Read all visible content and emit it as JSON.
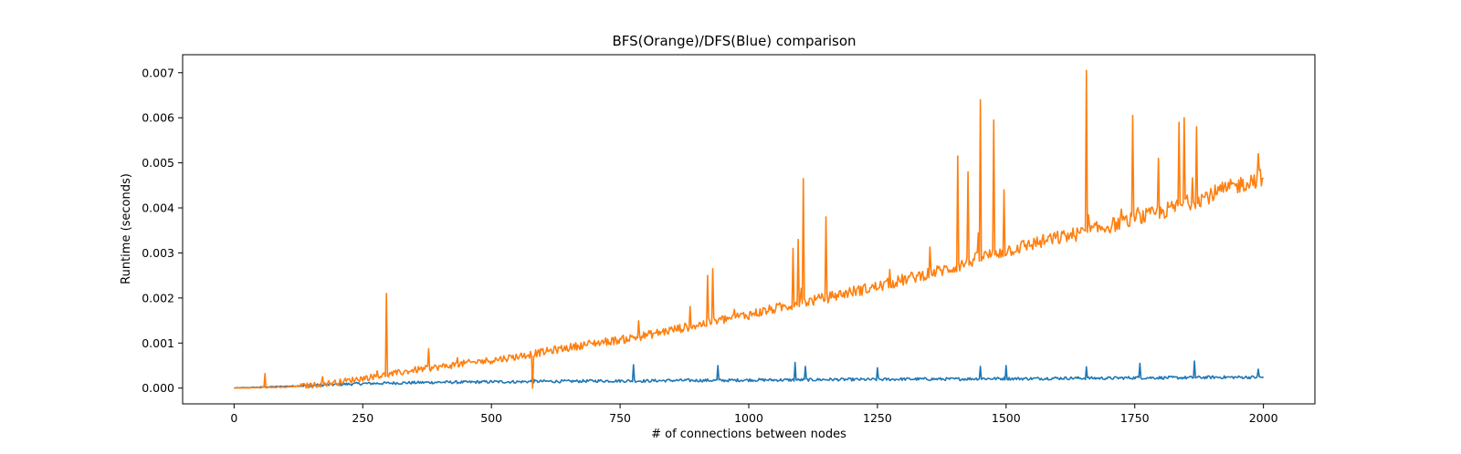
{
  "chart_data": {
    "type": "line",
    "title": "BFS(Orange)/DFS(Blue) comparison",
    "xlabel": "# of connections between nodes",
    "ylabel": "Runtime (seconds)",
    "xlim": [
      -100,
      2100
    ],
    "ylim": [
      -0.00035,
      0.0074
    ],
    "xticks": [
      0,
      250,
      500,
      750,
      1000,
      1250,
      1500,
      1750,
      2000
    ],
    "xtick_labels": [
      "0",
      "250",
      "500",
      "750",
      "1000",
      "1250",
      "1500",
      "1750",
      "2000"
    ],
    "yticks": [
      0.0,
      0.001,
      0.002,
      0.003,
      0.004,
      0.005,
      0.006,
      0.007
    ],
    "ytick_labels": [
      "0.000",
      "0.001",
      "0.002",
      "0.003",
      "0.004",
      "0.005",
      "0.006",
      "0.007"
    ],
    "grid": false,
    "series": [
      {
        "color": "#1f77b4",
        "x": [
          0,
          50,
          100,
          150,
          200,
          250,
          300,
          350,
          400,
          450,
          500,
          550,
          600,
          650,
          700,
          750,
          800,
          850,
          900,
          950,
          1000,
          1050,
          1100,
          1150,
          1200,
          1250,
          1300,
          1350,
          1400,
          1450,
          1500,
          1550,
          1600,
          1650,
          1700,
          1750,
          1800,
          1850,
          1900,
          1950,
          2000
        ],
        "y": [
          0.0,
          2e-05,
          4e-05,
          6e-05,
          8e-05,
          0.0001,
          0.00011,
          0.00012,
          0.00013,
          0.00013,
          0.00014,
          0.00014,
          0.00015,
          0.00015,
          0.00016,
          0.00016,
          0.00016,
          0.00017,
          0.00017,
          0.00017,
          0.00018,
          0.00018,
          0.00018,
          0.00019,
          0.00019,
          0.00019,
          0.0002,
          0.0002,
          0.0002,
          0.00021,
          0.00021,
          0.00021,
          0.00022,
          0.00022,
          0.00022,
          0.00023,
          0.00023,
          0.00023,
          0.00024,
          0.00024,
          0.00024
        ],
        "spikes": [
          [
            580,
            0.00032
          ],
          [
            775,
            0.00052
          ],
          [
            940,
            0.0005
          ],
          [
            1090,
            0.00057
          ],
          [
            1110,
            0.00048
          ],
          [
            1250,
            0.00045
          ],
          [
            1450,
            0.00048
          ],
          [
            1500,
            0.0005
          ],
          [
            1655,
            0.00047
          ],
          [
            1760,
            0.00055
          ],
          [
            1865,
            0.0006
          ],
          [
            1990,
            0.00042
          ]
        ]
      },
      {
        "color": "#ff7f0e",
        "x": [
          0,
          50,
          100,
          150,
          200,
          250,
          300,
          350,
          400,
          450,
          500,
          550,
          600,
          650,
          700,
          750,
          800,
          850,
          900,
          950,
          1000,
          1050,
          1100,
          1150,
          1200,
          1250,
          1300,
          1350,
          1400,
          1450,
          1500,
          1550,
          1600,
          1650,
          1700,
          1750,
          1800,
          1850,
          1900,
          1950,
          2000
        ],
        "y": [
          0.0,
          1e-05,
          2e-05,
          6e-05,
          0.00013,
          0.00022,
          0.0003,
          0.0004,
          0.00047,
          0.00055,
          0.00062,
          0.0007,
          0.0008,
          0.0009,
          0.001,
          0.00107,
          0.00117,
          0.00129,
          0.0014,
          0.00152,
          0.00163,
          0.00176,
          0.00189,
          0.002,
          0.00214,
          0.00225,
          0.0024,
          0.00255,
          0.00268,
          0.0029,
          0.00305,
          0.0032,
          0.00333,
          0.00345,
          0.0036,
          0.00375,
          0.0039,
          0.0041,
          0.0043,
          0.0045,
          0.0047
        ],
        "spikes": [
          [
            295,
            0.0021
          ],
          [
            580,
            0.0
          ],
          [
            920,
            0.0025
          ],
          [
            930,
            0.00265
          ],
          [
            1085,
            0.0031
          ],
          [
            1095,
            0.0033
          ],
          [
            1105,
            0.00465
          ],
          [
            1150,
            0.0038
          ],
          [
            1405,
            0.00515
          ],
          [
            1425,
            0.0048
          ],
          [
            1450,
            0.0064
          ],
          [
            1475,
            0.00595
          ],
          [
            1495,
            0.0044
          ],
          [
            1655,
            0.00705
          ],
          [
            1745,
            0.00605
          ],
          [
            1795,
            0.0051
          ],
          [
            1835,
            0.0059
          ],
          [
            1845,
            0.006
          ],
          [
            1870,
            0.0058
          ],
          [
            1990,
            0.0052
          ]
        ]
      }
    ]
  }
}
